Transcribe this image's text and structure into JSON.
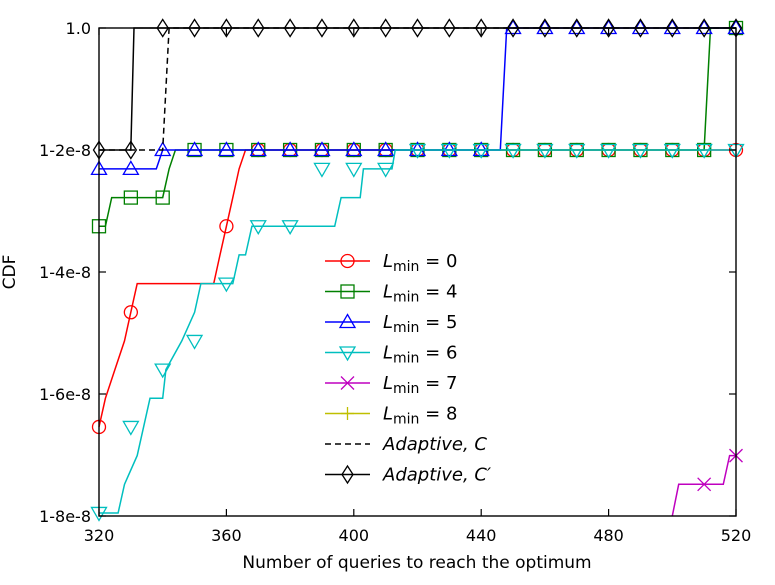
{
  "chart_data": {
    "type": "line",
    "xlabel": "Number of queries to reach the optimum",
    "ylabel": "CDF",
    "xlim": [
      320,
      520
    ],
    "ylim": [
      -1.8e-08,
      1.0
    ],
    "x_ticks": [
      {
        "value": 320,
        "label": "320"
      },
      {
        "value": 360,
        "label": "360"
      },
      {
        "value": 400,
        "label": "400"
      },
      {
        "value": 440,
        "label": "440"
      },
      {
        "value": 480,
        "label": "480"
      },
      {
        "value": 520,
        "label": "520"
      }
    ],
    "y_ticks": [
      {
        "value": 1.0,
        "label": "1.0"
      },
      {
        "value": -2e-09,
        "label": "1-2e-8"
      },
      {
        "value": -6e-09,
        "label": "1-4e-8"
      },
      {
        "value": -1e-08,
        "label": "1-6e-8"
      },
      {
        "value": -1.4e-08,
        "label": "1-8e-8"
      }
    ],
    "legend_position": "center",
    "series": [
      {
        "name": "L_min = 0",
        "legend_main": "L",
        "legend_sub": "min",
        "legend_rest": " = 0",
        "color": "#ff0000",
        "marker": "circle",
        "dashed": false,
        "steps": [
          [
            320,
            -1.108e-08
          ],
          [
            322,
            -1.014e-08
          ],
          [
            325,
            -9.2e-09
          ],
          [
            328,
            -8.26e-09
          ],
          [
            330,
            -7.32e-09
          ],
          [
            332,
            -6.38e-09
          ],
          [
            350,
            -6.38e-09
          ],
          [
            356,
            -6.38e-09
          ],
          [
            358,
            -5.44e-09
          ],
          [
            360,
            -4.5e-09
          ],
          [
            362,
            -3.56e-09
          ],
          [
            364,
            -2.62e-09
          ],
          [
            366,
            -1.68e-09
          ],
          [
            368,
            -7.4e-10
          ],
          [
            410,
            -7.4e-10
          ],
          [
            450,
            -7.4e-10
          ],
          [
            452,
            -7.4e-10
          ],
          [
            453,
            2e-10
          ],
          [
            460,
            2e-10
          ],
          [
            520,
            2e-10
          ]
        ],
        "markers": [
          [
            320,
            -1.108e-08
          ],
          [
            330,
            -7.32e-09
          ],
          [
            360,
            -4.5e-09
          ],
          [
            370,
            -7.4e-10
          ],
          [
            380,
            -7.4e-10
          ],
          [
            390,
            -7.4e-10
          ],
          [
            400,
            -7.4e-10
          ],
          [
            410,
            -7.4e-10
          ],
          [
            420,
            -7.4e-10
          ],
          [
            430,
            -7.4e-10
          ],
          [
            440,
            -7.4e-10
          ],
          [
            450,
            -7.4e-10
          ],
          [
            460,
            2e-10
          ],
          [
            470,
            2e-10
          ],
          [
            480,
            2e-10
          ],
          [
            490,
            2e-10
          ],
          [
            500,
            2e-10
          ],
          [
            510,
            2e-10
          ],
          [
            520,
            2e-10
          ]
        ]
      },
      {
        "name": "L_min = 4",
        "legend_main": "L",
        "legend_sub": "min",
        "legend_rest": " = 4",
        "color": "#008000",
        "marker": "square",
        "dashed": false,
        "steps": [
          [
            320,
            -4.5e-09
          ],
          [
            322,
            -4.5e-09
          ],
          [
            324,
            -3.56e-09
          ],
          [
            340,
            -3.56e-09
          ],
          [
            342,
            -2.62e-09
          ],
          [
            344,
            -1.68e-09
          ],
          [
            346,
            -1.68e-09
          ],
          [
            348,
            -7.4e-10
          ],
          [
            364,
            -7.4e-10
          ],
          [
            366,
            -7.4e-10
          ],
          [
            368,
            2e-10
          ],
          [
            402,
            2e-10
          ],
          [
            403,
            1.14e-09
          ],
          [
            510,
            1.14e-09
          ],
          [
            512,
            1.0
          ],
          [
            520,
            1.0
          ]
        ],
        "markers": [
          [
            320,
            -4.5e-09
          ],
          [
            330,
            -3.56e-09
          ],
          [
            340,
            -3.56e-09
          ],
          [
            350,
            -7.4e-10
          ],
          [
            360,
            -7.4e-10
          ],
          [
            370,
            -7.4e-10
          ],
          [
            380,
            2e-10
          ],
          [
            390,
            2e-10
          ],
          [
            400,
            2e-10
          ],
          [
            410,
            1.14e-09
          ],
          [
            420,
            1.14e-09
          ],
          [
            430,
            1.14e-09
          ],
          [
            440,
            1.14e-09
          ],
          [
            450,
            1.14e-09
          ],
          [
            460,
            1.14e-09
          ],
          [
            470,
            1.14e-09
          ],
          [
            480,
            1.14e-09
          ],
          [
            490,
            1.14e-09
          ],
          [
            500,
            1.14e-09
          ],
          [
            510,
            1.14e-09
          ],
          [
            520,
            1.0
          ]
        ]
      },
      {
        "name": "L_min = 5",
        "legend_main": "L",
        "legend_sub": "min",
        "legend_rest": " = 5",
        "color": "#0000ff",
        "marker": "triangle-up",
        "dashed": false,
        "steps": [
          [
            320,
            -2.62e-09
          ],
          [
            338,
            -2.62e-09
          ],
          [
            340,
            -7.4e-10
          ],
          [
            402,
            -7.4e-10
          ],
          [
            405,
            1.14e-09
          ],
          [
            446,
            1.14e-09
          ],
          [
            448,
            1.0
          ],
          [
            520,
            1.0
          ]
        ],
        "markers": [
          [
            320,
            -2.62e-09
          ],
          [
            330,
            -2.62e-09
          ],
          [
            340,
            -7.4e-10
          ],
          [
            350,
            -7.4e-10
          ],
          [
            360,
            -7.4e-10
          ],
          [
            370,
            -7.4e-10
          ],
          [
            380,
            -7.4e-10
          ],
          [
            390,
            -7.4e-10
          ],
          [
            400,
            -7.4e-10
          ],
          [
            410,
            1.14e-09
          ],
          [
            420,
            1.14e-09
          ],
          [
            430,
            1.14e-09
          ],
          [
            440,
            1.14e-09
          ],
          [
            450,
            1.0
          ],
          [
            460,
            1.0
          ],
          [
            470,
            1.0
          ],
          [
            480,
            1.0
          ],
          [
            490,
            1.0
          ],
          [
            500,
            1.0
          ],
          [
            510,
            1.0
          ],
          [
            520,
            1.0
          ]
        ]
      },
      {
        "name": "L_min = 6",
        "legend_main": "L",
        "legend_sub": "min",
        "legend_rest": " = 6",
        "color": "#00bfbf",
        "marker": "triangle-down",
        "dashed": false,
        "steps": [
          [
            320,
            -1.39e-08
          ],
          [
            326,
            -1.39e-08
          ],
          [
            328,
            -1.296e-08
          ],
          [
            332,
            -1.202e-08
          ],
          [
            334,
            -1.108e-08
          ],
          [
            336,
            -1.014e-08
          ],
          [
            340,
            -1.014e-08
          ],
          [
            341,
            -9.2e-09
          ],
          [
            346,
            -8.26e-09
          ],
          [
            350,
            -7.32e-09
          ],
          [
            352,
            -6.38e-09
          ],
          [
            362,
            -6.38e-09
          ],
          [
            364,
            -5.44e-09
          ],
          [
            366,
            -5.44e-09
          ],
          [
            368,
            -4.5e-09
          ],
          [
            394,
            -4.5e-09
          ],
          [
            396,
            -3.56e-09
          ],
          [
            398,
            -3.56e-09
          ],
          [
            400,
            -3.56e-09
          ],
          [
            402,
            -3.56e-09
          ],
          [
            403,
            -2.62e-09
          ],
          [
            412,
            -2.62e-09
          ],
          [
            413,
            -7.4e-10
          ],
          [
            466,
            -7.4e-10
          ],
          [
            467,
            2e-10
          ],
          [
            518,
            2e-10
          ],
          [
            520,
            1.14e-09
          ]
        ],
        "markers": [
          [
            320,
            -1.39e-08
          ],
          [
            330,
            -1.108e-08
          ],
          [
            340,
            -9.2e-09
          ],
          [
            350,
            -8.26e-09
          ],
          [
            360,
            -6.38e-09
          ],
          [
            370,
            -4.5e-09
          ],
          [
            380,
            -4.5e-09
          ],
          [
            390,
            -2.62e-09
          ],
          [
            400,
            -2.62e-09
          ],
          [
            410,
            -2.62e-09
          ],
          [
            420,
            -7.4e-10
          ],
          [
            430,
            -7.4e-10
          ],
          [
            440,
            -7.4e-10
          ],
          [
            450,
            -7.4e-10
          ],
          [
            460,
            -7.4e-10
          ],
          [
            470,
            2e-10
          ],
          [
            480,
            2e-10
          ],
          [
            490,
            2e-10
          ],
          [
            500,
            2e-10
          ],
          [
            510,
            2e-10
          ],
          [
            520,
            1.14e-09
          ]
        ]
      },
      {
        "name": "L_min = 7",
        "legend_main": "L",
        "legend_sub": "min",
        "legend_rest": " = 7",
        "color": "#bf00bf",
        "marker": "x",
        "dashed": false,
        "steps": [
          [
            500,
            -1.4e-08
          ],
          [
            502,
            -1.296e-08
          ],
          [
            516,
            -1.296e-08
          ],
          [
            518,
            -1.202e-08
          ],
          [
            520,
            -1.202e-08
          ]
        ],
        "markers": [
          [
            510,
            -1.296e-08
          ],
          [
            520,
            -1.202e-08
          ]
        ]
      },
      {
        "name": "L_min = 8",
        "legend_main": "L",
        "legend_sub": "min",
        "legend_rest": " = 8",
        "color": "#bfbf00",
        "marker": "plus",
        "dashed": false,
        "steps": [],
        "markers": []
      },
      {
        "name": "Adaptive, C",
        "legend_main": "Adaptive, C",
        "legend_sub": "",
        "legend_rest": "",
        "color": "#000000",
        "marker": "none",
        "dashed": true,
        "steps": [
          [
            320,
            2e-10
          ],
          [
            324,
            2e-10
          ],
          [
            326,
            1.14e-09
          ],
          [
            340,
            1.14e-09
          ],
          [
            342,
            1.0
          ],
          [
            520,
            1.0
          ]
        ],
        "markers": []
      },
      {
        "name": "Adaptive, C'",
        "legend_main": "Adaptive, C′",
        "legend_sub": "",
        "legend_rest": "",
        "color": "#000000",
        "marker": "diamond",
        "dashed": false,
        "steps": [
          [
            320,
            1.14e-09
          ],
          [
            328,
            1.14e-09
          ],
          [
            330,
            1.14e-09
          ],
          [
            331,
            1.0
          ],
          [
            520,
            1.0
          ]
        ],
        "markers": [
          [
            320,
            1.14e-09
          ],
          [
            330,
            1.14e-09
          ],
          [
            340,
            1.0
          ],
          [
            350,
            1.0
          ],
          [
            360,
            1.0
          ],
          [
            370,
            1.0
          ],
          [
            380,
            1.0
          ],
          [
            390,
            1.0
          ],
          [
            400,
            1.0
          ],
          [
            410,
            1.0
          ],
          [
            420,
            1.0
          ],
          [
            430,
            1.0
          ],
          [
            440,
            1.0
          ],
          [
            450,
            1.0
          ],
          [
            460,
            1.0
          ],
          [
            470,
            1.0
          ],
          [
            480,
            1.0
          ],
          [
            490,
            1.0
          ],
          [
            500,
            1.0
          ],
          [
            510,
            1.0
          ],
          [
            520,
            1.0
          ]
        ]
      }
    ]
  }
}
